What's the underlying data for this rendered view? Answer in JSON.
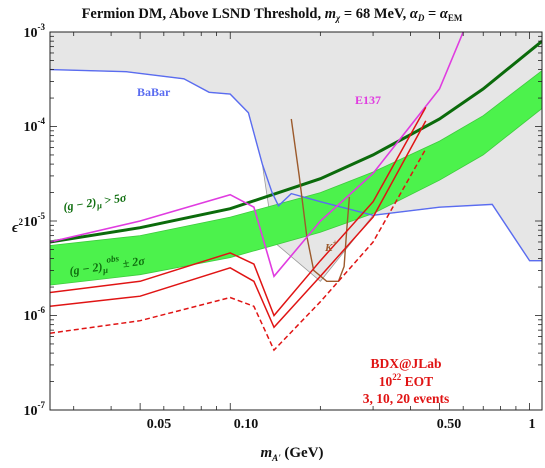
{
  "colors": {
    "excluded_fill": "#e6e6e6",
    "excluded_edge": "#9a9a9a",
    "band_fill": "#4cf24c",
    "band_edge": "#3ecb3e",
    "g2_line": "#0b6b0b",
    "babar": "#5a6cf0",
    "e137": "#e03ce0",
    "kplus": "#9c5a2c",
    "bdx": "#e01414",
    "text_green": "#0f6e0f"
  },
  "title": {
    "main": "Fermion DM, Above LSND Threshold, ",
    "m_sym": "m",
    "m_sub": "χ",
    "m_val": " = 68 MeV, ",
    "a_sym": "α",
    "a_sub": "D",
    "a_eq": " = ",
    "a_sym2": "α",
    "a_sub2": "EM"
  },
  "axes": {
    "xlabel_main": "m",
    "xlabel_sub": "A'",
    "xlabel_unit": " (GeV)",
    "ylabel_main": "ϵ",
    "ylabel_sup": "2",
    "x_ticks": [
      "0.05",
      "0.10",
      "0.50",
      "1"
    ],
    "y_ticks": [
      {
        "base": "10",
        "exp": "-3"
      },
      {
        "base": "10",
        "exp": "-4"
      },
      {
        "base": "10",
        "exp": "-5"
      },
      {
        "base": "10",
        "exp": "-6"
      },
      {
        "base": "10",
        "exp": "-7"
      }
    ]
  },
  "annotations": {
    "babar": "BaBar",
    "e137": "E137",
    "kplus": "K",
    "kplus_sup": "+",
    "g2_main_pre": "(g − 2)",
    "g2_main_sub": "μ",
    "g2_main_post": " > 5σ",
    "g2_band_pre": "(g − 2)",
    "g2_band_sub": "μ",
    "g2_band_sup": "obs",
    "g2_band_post": " ± 2σ",
    "bdx_1": "BDX@JLab",
    "bdx_2_base": "10",
    "bdx_2_exp": "22",
    "bdx_2_post": "  EOT",
    "bdx_3": "3, 10, 20 events"
  },
  "chart_data": {
    "type": "line",
    "title": "Fermion DM, Above LSND Threshold, mχ = 68 MeV, αD = αEM",
    "xlabel": "mA' (GeV)",
    "ylabel": "ϵ²",
    "x_scale": "log",
    "y_scale": "log",
    "xlim": [
      0.025,
      1.1
    ],
    "ylim": [
      1e-07,
      0.001
    ],
    "series": [
      {
        "name": "(g − 2)μ > 5σ",
        "x": [
          0.025,
          0.05,
          0.1,
          0.2,
          0.3,
          0.5,
          0.7,
          1.1
        ],
        "y": [
          6e-06,
          8.5e-06,
          1.35e-05,
          2.8e-05,
          5e-05,
          0.00012,
          0.00025,
          0.0008
        ]
      },
      {
        "name": "(g − 2)μ obs ± 2σ upper",
        "x": [
          0.025,
          0.05,
          0.1,
          0.2,
          0.3,
          0.5,
          0.7,
          1.1
        ],
        "y": [
          5.5e-06,
          7e-06,
          1.1e-05,
          2e-05,
          3.3e-05,
          7e-05,
          0.00013,
          0.00039
        ]
      },
      {
        "name": "(g − 2)μ obs ± 2σ lower",
        "x": [
          0.025,
          0.05,
          0.1,
          0.2,
          0.3,
          0.5,
          0.7,
          1.1
        ],
        "y": [
          2.1e-06,
          2.7e-06,
          4.1e-06,
          7.6e-06,
          1.2e-05,
          2.7e-05,
          5e-05,
          0.000155
        ]
      },
      {
        "name": "BaBar",
        "x": [
          0.025,
          0.045,
          0.07,
          0.085,
          0.1,
          0.115,
          0.128,
          0.138,
          0.145,
          0.16,
          0.2,
          0.3,
          0.5,
          0.75,
          1.0,
          1.1
        ],
        "y": [
          0.0004,
          0.00038,
          0.00032,
          0.00023,
          0.00022,
          0.00014,
          4e-05,
          2e-05,
          1.45e-05,
          1.95e-05,
          1.6e-05,
          1.15e-05,
          1.4e-05,
          1.5e-05,
          3.8e-06,
          3.8e-06
        ]
      },
      {
        "name": "E137",
        "x": [
          0.025,
          0.05,
          0.1,
          0.12,
          0.14,
          0.2,
          0.3,
          0.5,
          0.6
        ],
        "y": [
          6e-06,
          1e-05,
          1.9e-05,
          1.4e-05,
          2.6e-06,
          1e-05,
          3.2e-05,
          0.00025,
          0.001
        ]
      },
      {
        "name": "K+",
        "x": [
          0.16,
          0.17,
          0.18,
          0.19,
          0.21,
          0.23,
          0.24,
          0.245,
          0.25
        ],
        "y": [
          0.00012,
          3e-05,
          7e-06,
          3e-06,
          2.3e-06,
          2.3e-06,
          3.3e-06,
          8e-06,
          1.8e-05
        ]
      },
      {
        "name": "BDX 3 events",
        "x": [
          0.025,
          0.05,
          0.1,
          0.12,
          0.14,
          0.2,
          0.3,
          0.45
        ],
        "y": [
          6.5e-07,
          8.8e-07,
          1.55e-06,
          1.25e-06,
          4.3e-07,
          1.4e-06,
          6e-06,
          5.8e-05
        ]
      },
      {
        "name": "BDX 10 events",
        "x": [
          0.025,
          0.05,
          0.1,
          0.12,
          0.14,
          0.2,
          0.3,
          0.45
        ],
        "y": [
          1.25e-06,
          1.6e-06,
          3.2e-06,
          2.3e-06,
          7.5e-07,
          2.6e-06,
          1.1e-05,
          0.000115
        ]
      },
      {
        "name": "BDX 20 events",
        "x": [
          0.025,
          0.05,
          0.1,
          0.12,
          0.14,
          0.2,
          0.3,
          0.45
        ],
        "y": [
          1.75e-06,
          2.3e-06,
          4.6e-06,
          3.5e-06,
          1e-06,
          3.8e-06,
          1.6e-05,
          0.00016
        ]
      }
    ],
    "excluded_region": {
      "x": [
        0.025,
        0.045,
        0.07,
        0.085,
        0.1,
        0.115,
        0.128,
        0.14,
        0.2,
        0.3,
        0.5,
        0.75,
        1.0,
        1.1
      ],
      "y": [
        0.0004,
        0.00038,
        0.00032,
        0.00023,
        0.00022,
        0.00014,
        4e-05,
        6e-06,
        2.3e-06,
        1.15e-05,
        1.4e-05,
        1.5e-05,
        3.8e-06,
        3.8e-06
      ]
    }
  }
}
